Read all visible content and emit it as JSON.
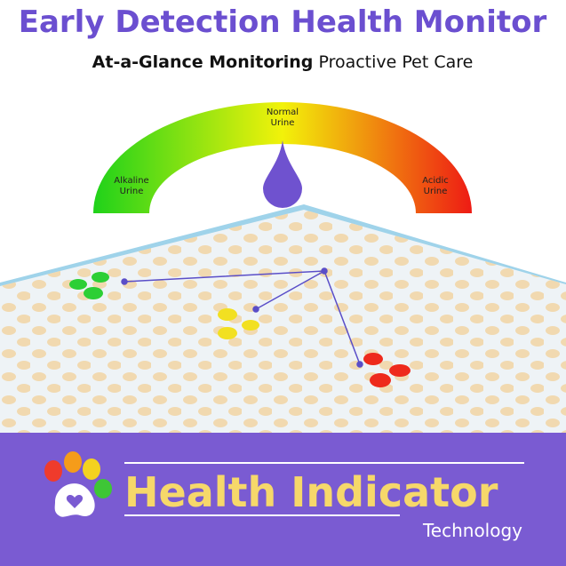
{
  "header": {
    "title": "Early Detection Health Monitor",
    "subtitle_bold": "At-a-Glance Monitoring",
    "subtitle": "Proactive Pet Care"
  },
  "gauge": {
    "left": [
      "Alkaline",
      "Urine"
    ],
    "middle": [
      "Normal",
      "Urine"
    ],
    "right": [
      "Acidic",
      "Urine"
    ]
  },
  "banner": {
    "title": "Health Indicator",
    "subtitle": "Technology"
  }
}
